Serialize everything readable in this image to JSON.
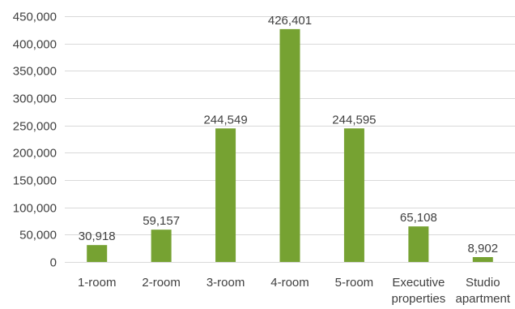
{
  "chart_data": {
    "type": "bar",
    "categories": [
      "1-room",
      "2-room",
      "3-room",
      "4-room",
      "5-room",
      "Executive properties",
      "Studio apartment"
    ],
    "category_lines": [
      [
        "1-room"
      ],
      [
        "2-room"
      ],
      [
        "3-room"
      ],
      [
        "4-room"
      ],
      [
        "5-room"
      ],
      [
        "Executive",
        "properties"
      ],
      [
        "Studio",
        "apartment"
      ]
    ],
    "values": [
      30918,
      59157,
      244549,
      426401,
      244595,
      65108,
      8902
    ],
    "data_labels": [
      "30,918",
      "59,157",
      "244,549",
      "426,401",
      "244,595",
      "65,108",
      "8,902"
    ],
    "y_ticks": [
      0,
      50000,
      100000,
      150000,
      200000,
      250000,
      300000,
      350000,
      400000,
      450000
    ],
    "y_tick_labels": [
      "0",
      "50,000",
      "100,000",
      "150,000",
      "200,000",
      "250,000",
      "300,000",
      "350,000",
      "400,000",
      "450,000"
    ],
    "ylim": [
      0,
      450000
    ],
    "grid": true,
    "legend": "none",
    "title": "",
    "xlabel": "",
    "ylabel": "",
    "bar_color": "#76A232",
    "grid_color": "#D9D9D9",
    "text_color": "#404040"
  }
}
